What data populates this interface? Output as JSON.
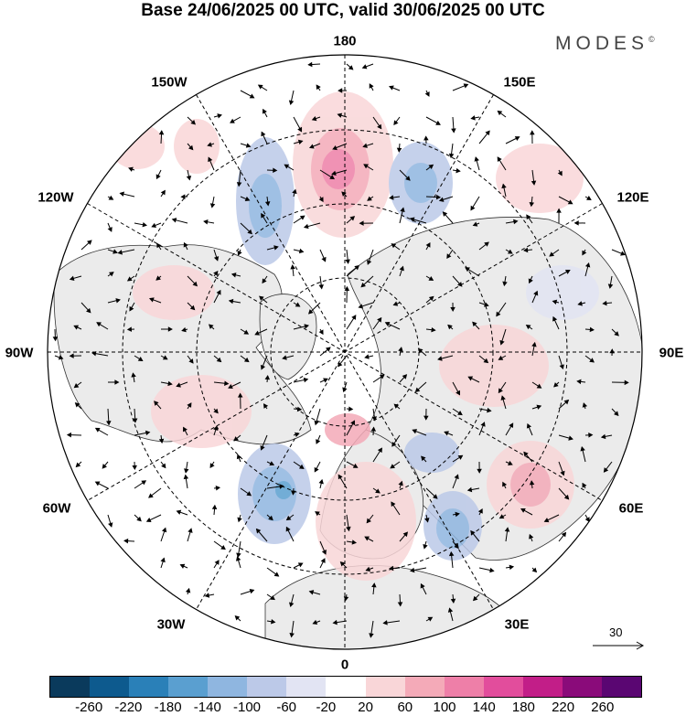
{
  "title": "Base 24/06/2025 00 UTC, valid 30/06/2025 00 UTC",
  "brand": {
    "text": "MODES",
    "mark": "©"
  },
  "longitude_labels": {
    "lon_180": "180",
    "lon_150e": "150E",
    "lon_120e": "120E",
    "lon_90e": "90E",
    "lon_60e": "60E",
    "lon_30e": "30E",
    "lon_0": "0",
    "lon_30w": "30W",
    "lon_60w": "60W",
    "lon_90w": "90W",
    "lon_120w": "120W",
    "lon_150w": "150W"
  },
  "reference_vector": {
    "label": "30"
  },
  "colorbar": {
    "labels": [
      "-260",
      "-220",
      "-180",
      "-140",
      "-100",
      "-60",
      "-20",
      "20",
      "60",
      "100",
      "140",
      "180",
      "220",
      "260"
    ],
    "colors": [
      "#0a3a5c",
      "#0d5a8e",
      "#2a80b8",
      "#5a9fd0",
      "#8fb6e0",
      "#bcc9e8",
      "#e2e4f3",
      "#ffffff",
      "#f9d6d8",
      "#f4aab8",
      "#ee7fa8",
      "#e24d9c",
      "#c21e88",
      "#8a0b7a",
      "#5a0672"
    ]
  },
  "colors": {
    "land": "#ebebeb",
    "ocean": "#ffffff",
    "positive_anomaly": "#f4aab8",
    "negative_anomaly": "#8fb6e0"
  }
}
